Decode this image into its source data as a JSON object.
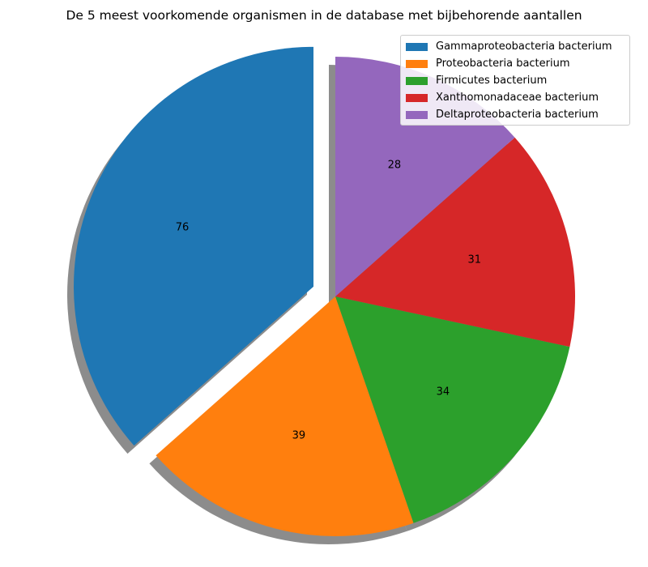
{
  "chart_data": {
    "type": "pie",
    "title": "De 5 meest voorkomende organismen in de database met bijbehorende aantallen",
    "labels": [
      "Gammaproteobacteria bacterium",
      "Proteobacteria bacterium",
      "Firmicutes bacterium",
      "Xanthomonadaceae bacterium",
      "Deltaproteobacteria bacterium"
    ],
    "values": [
      76,
      39,
      34,
      31,
      28
    ],
    "colors": [
      "#1f77b4",
      "#ff7f0e",
      "#2ca02c",
      "#d62728",
      "#9467bd"
    ],
    "explode": [
      0.1,
      0,
      0,
      0,
      0
    ],
    "shadow": true,
    "start_angle_deg": 90,
    "legend_placement": "top-right"
  }
}
